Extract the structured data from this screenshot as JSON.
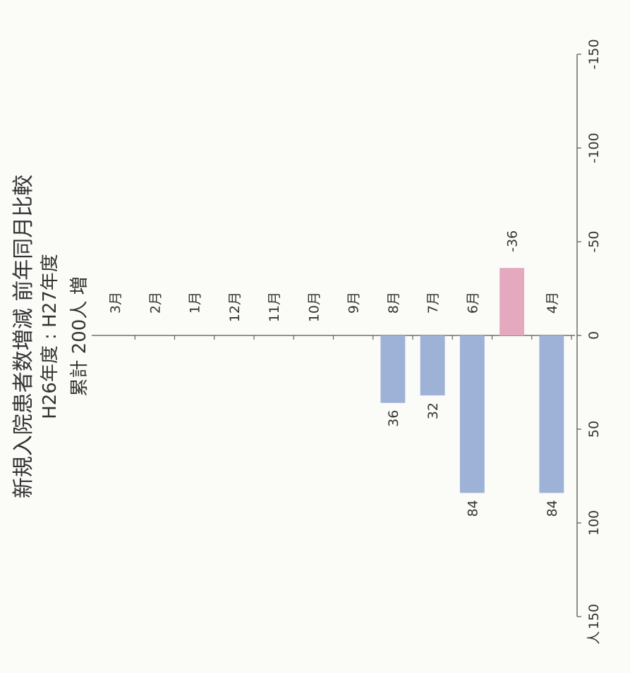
{
  "title": "新規入院患者数増減 前年同月比較",
  "subtitle": "H26年度 : H27年度",
  "summary": "累計 200人 増",
  "chart_data": {
    "type": "bar",
    "orientation": "horizontal",
    "categories": [
      "4月",
      "5月",
      "6月",
      "7月",
      "8月",
      "9月",
      "10月",
      "11月",
      "12月",
      "1月",
      "2月",
      "3月"
    ],
    "values": [
      84,
      -36,
      84,
      32,
      36,
      null,
      null,
      null,
      null,
      null,
      null,
      null
    ],
    "data_labels": [
      "84",
      "-36",
      "84",
      "32",
      "36",
      "",
      "",
      "",
      "",
      "",
      "",
      ""
    ],
    "unit_label": "人",
    "ylim": [
      -150,
      150
    ],
    "ticks": [
      150,
      100,
      50,
      0,
      -50,
      -100,
      -150
    ],
    "tick_labels": [
      "150",
      "100",
      "50",
      "0",
      "-50",
      "-100",
      "-150"
    ],
    "colors": {
      "positive": "#9db2d6",
      "negative": "#e5a9bf",
      "axis": "#555555"
    },
    "grid": false,
    "legend": "none"
  }
}
